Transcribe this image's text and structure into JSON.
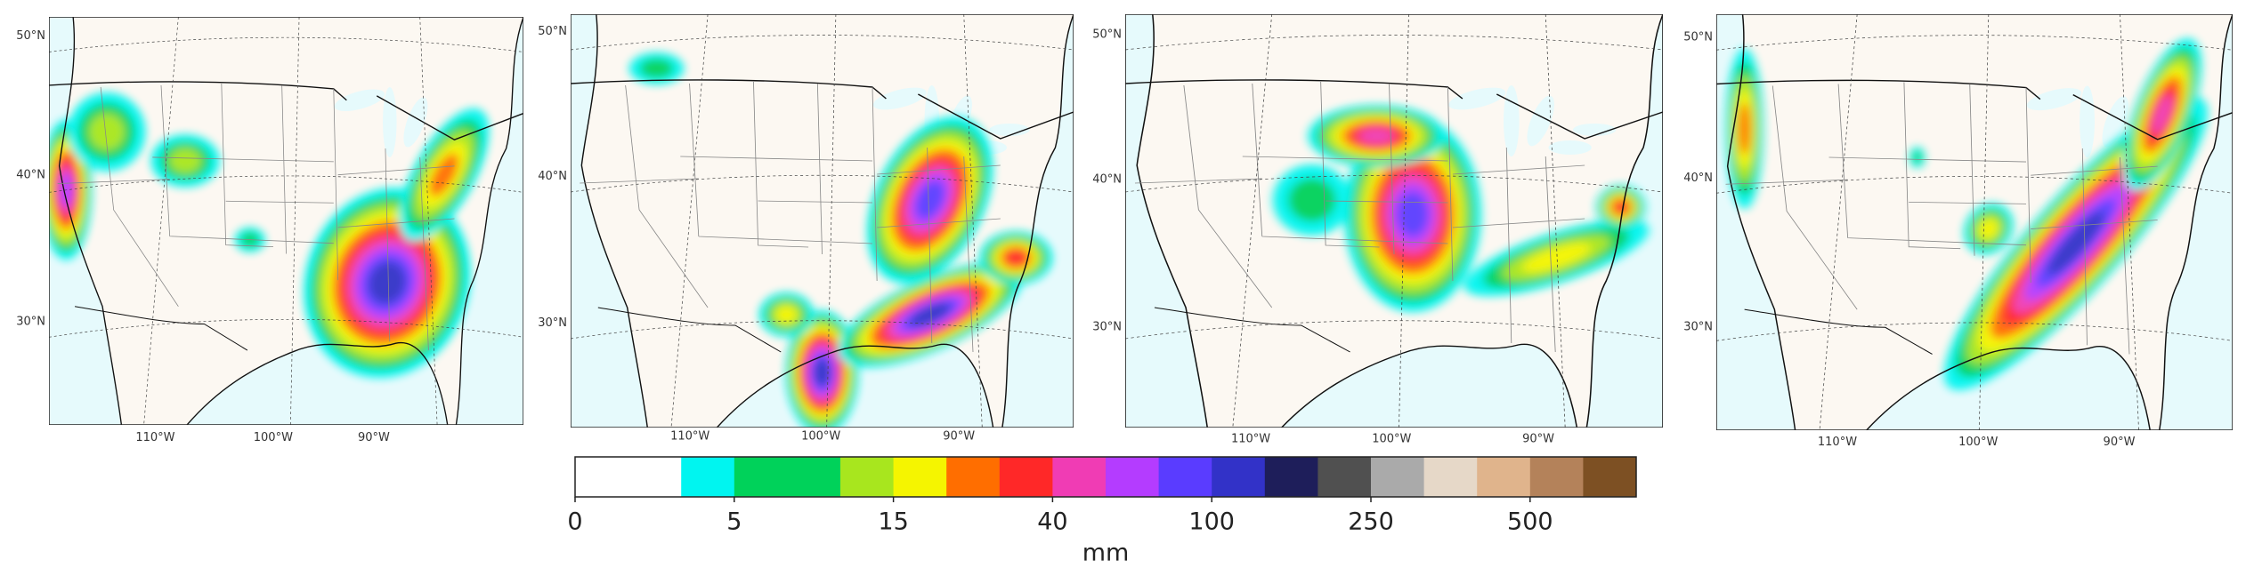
{
  "maps": [
    {
      "lat_labels": [
        "50°N",
        "40°N",
        "30°N"
      ],
      "lon_labels": [
        "110°W",
        "100°W",
        "90°W"
      ]
    },
    {
      "lat_labels": [
        "50°N",
        "40°N",
        "30°N"
      ],
      "lon_labels": [
        "110°W",
        "100°W",
        "90°W"
      ]
    },
    {
      "lat_labels": [
        "50°N",
        "40°N",
        "30°N"
      ],
      "lon_labels": [
        "110°W",
        "100°W",
        "90°W"
      ]
    },
    {
      "lat_labels": [
        "50°N",
        "40°N",
        "30°N"
      ],
      "lon_labels": [
        "110°W",
        "100°W",
        "90°W"
      ]
    }
  ],
  "colorbar": {
    "colors": [
      "#ffffff",
      "#ffffff",
      "#00f5f0",
      "#00d25a",
      "#00d25a",
      "#a8e61e",
      "#f5f500",
      "#ff6e00",
      "#ff2828",
      "#f03cb4",
      "#b43cff",
      "#5a3cff",
      "#3232c8",
      "#1e1e5a",
      "#505050",
      "#aaaaaa",
      "#e6d8c8",
      "#e0b48c",
      "#b4825a",
      "#7d5023"
    ],
    "ticks": [
      0,
      5,
      15,
      40,
      100,
      250,
      500
    ],
    "label": "mm"
  }
}
